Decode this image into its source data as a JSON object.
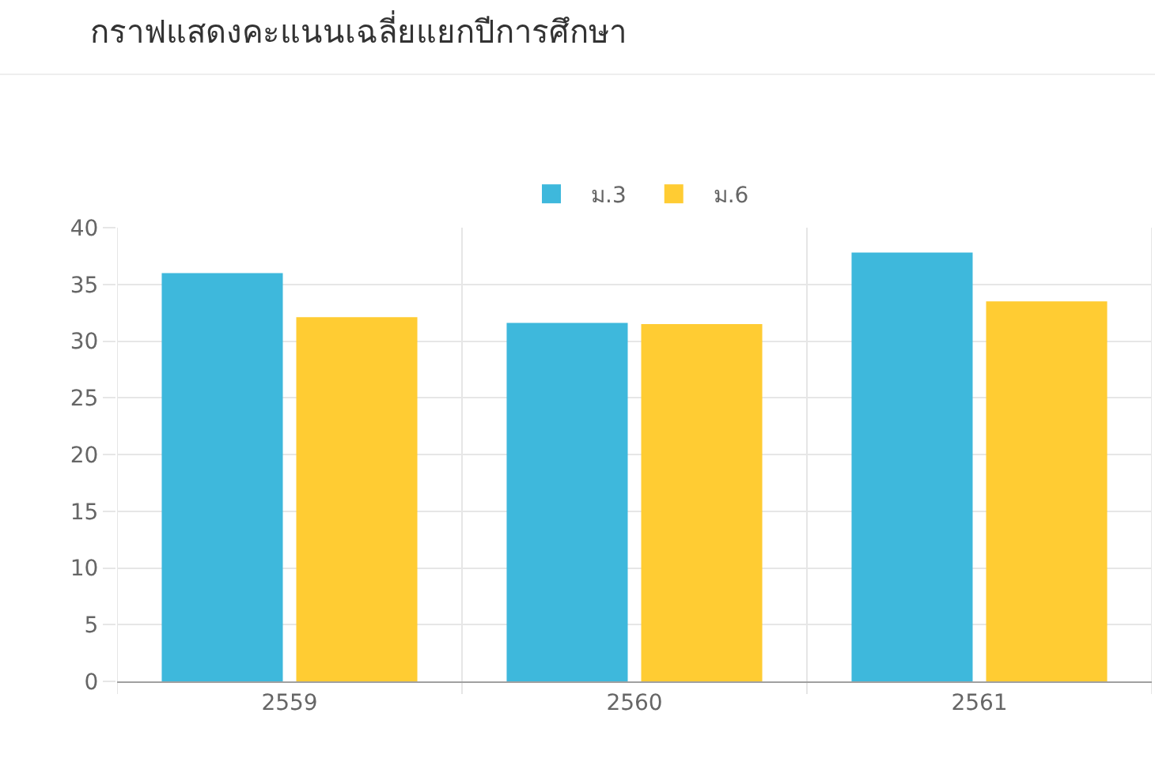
{
  "chart_data": {
    "type": "bar",
    "title": "กราฟแสดงคะแนนเฉลี่ยแยกปีการศึกษา",
    "categories": [
      "2559",
      "2560",
      "2561"
    ],
    "series": [
      {
        "name": "ม.3",
        "color": "#3eb8dc",
        "values": [
          36.0,
          31.6,
          37.8
        ]
      },
      {
        "name": "ม.6",
        "color": "#ffcc33",
        "values": [
          32.1,
          31.5,
          33.5
        ]
      }
    ],
    "ylim": [
      0,
      40
    ],
    "yticks": [
      0,
      5,
      10,
      15,
      20,
      25,
      30,
      35,
      40
    ],
    "grid": true,
    "legend": "top"
  }
}
